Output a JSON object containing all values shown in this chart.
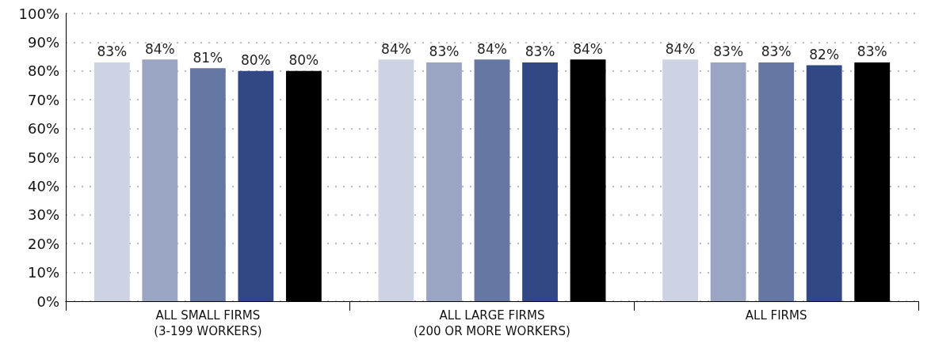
{
  "chart_data": {
    "type": "bar",
    "categories": [
      "ALL SMALL FIRMS\n(3-199 WORKERS)",
      "ALL LARGE FIRMS\n(200 OR MORE WORKERS)",
      "ALL FIRMS"
    ],
    "series": [
      {
        "color": "#cdd3e2",
        "values": [
          83,
          84,
          84
        ],
        "value_labels": [
          "83%",
          "84%",
          "84%"
        ]
      },
      {
        "color": "#9aa5c3",
        "values": [
          84,
          83,
          83
        ],
        "value_labels": [
          "84%",
          "83%",
          "83%"
        ]
      },
      {
        "color": "#6577a3",
        "values": [
          81,
          84,
          83
        ],
        "value_labels": [
          "81%",
          "84%",
          "83%"
        ]
      },
      {
        "color": "#324886",
        "values": [
          80,
          83,
          82
        ],
        "value_labels": [
          "80%",
          "83%",
          "82%"
        ]
      },
      {
        "color": "#000000",
        "values": [
          80,
          84,
          83
        ],
        "value_labels": [
          "80%",
          "84%",
          "83%"
        ]
      }
    ],
    "ylim": [
      0,
      100
    ],
    "yticks": [
      {
        "value": 0,
        "label": "0%"
      },
      {
        "value": 10,
        "label": "10%"
      },
      {
        "value": 20,
        "label": "20%"
      },
      {
        "value": 30,
        "label": "30%"
      },
      {
        "value": 40,
        "label": "40%"
      },
      {
        "value": 50,
        "label": "50%"
      },
      {
        "value": 60,
        "label": "60%"
      },
      {
        "value": 70,
        "label": "70%"
      },
      {
        "value": 80,
        "label": "80%"
      },
      {
        "value": 90,
        "label": "90%"
      },
      {
        "value": 100,
        "label": "100%"
      }
    ],
    "grid": "y"
  }
}
